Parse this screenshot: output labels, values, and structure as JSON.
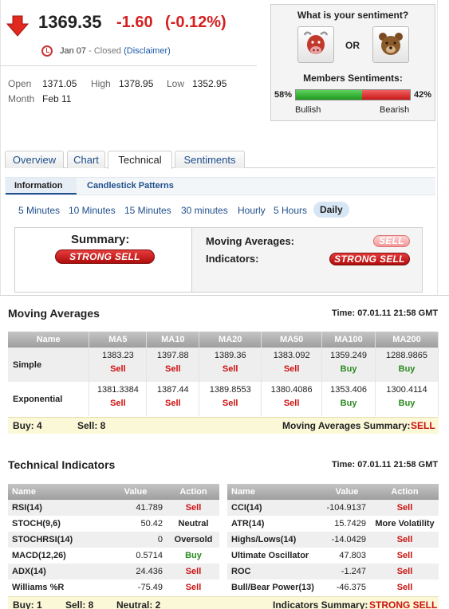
{
  "quote": {
    "price": "1369.35",
    "change": "-1.60",
    "change_pct": "(-0.12%)",
    "date": "Jan 07",
    "status": "- Closed",
    "disclaimer": "(Disclaimer)",
    "open_label": "Open",
    "open": "1371.05",
    "high_label": "High",
    "high": "1378.95",
    "low_label": "Low",
    "low": "1352.95",
    "month_label": "Month",
    "month": "Feb 11",
    "down_color": "#d42020"
  },
  "sentiment": {
    "question": "What is your sentiment?",
    "or": "OR",
    "bull_icon": "bull-icon",
    "bear_icon": "bear-icon",
    "title": "Members Sentiments:",
    "bullish_pct": "58%",
    "bearish_pct": "42%",
    "bullish_fraction": 0.58,
    "bullish_label": "Bullish",
    "bearish_label": "Bearish"
  },
  "tabs": [
    "Overview",
    "Chart",
    "Technical",
    "Sentiments"
  ],
  "subtabs": [
    "Information",
    "Candlestick Patterns"
  ],
  "timeframes": [
    "5 Minutes",
    "10 Minutes",
    "15 Minutes",
    "30 minutes",
    "Hourly",
    "5 Hours",
    "Daily"
  ],
  "summary": {
    "title": "Summary:",
    "value": "STRONG SELL",
    "ma_label": "Moving Averages:",
    "ma_value": "SELL",
    "ind_label": "Indicators:",
    "ind_value": "STRONG SELL"
  },
  "moving_averages": {
    "title": "Moving Averages",
    "time": "Time: 07.01.11 21:58 GMT",
    "headers": [
      "Name",
      "MA5",
      "MA10",
      "MA20",
      "MA50",
      "MA100",
      "MA200"
    ],
    "rows": [
      {
        "name": "Simple",
        "values": [
          "1383.23",
          "1397.88",
          "1389.36",
          "1383.092",
          "1359.249",
          "1288.9865"
        ],
        "signals": [
          "Sell",
          "Sell",
          "Sell",
          "Sell",
          "Buy",
          "Buy"
        ]
      },
      {
        "name": "Exponential",
        "values": [
          "1381.3384",
          "1387.44",
          "1389.8553",
          "1380.4086",
          "1353.406",
          "1300.4114"
        ],
        "signals": [
          "Sell",
          "Sell",
          "Sell",
          "Sell",
          "Buy",
          "Buy"
        ]
      }
    ],
    "buy": "Buy: 4",
    "sell": "Sell: 8",
    "summary_label": "Moving Averages Summary:",
    "summary_value": "SELL"
  },
  "technical": {
    "title": "Technical Indicators",
    "time": "Time: 07.01.11 21:58 GMT",
    "headers": [
      "Name",
      "Value",
      "Action"
    ],
    "left": [
      {
        "name": "RSI(14)",
        "value": "41.789",
        "action": "Sell"
      },
      {
        "name": "STOCH(9,6)",
        "value": "50.42",
        "action": "Neutral"
      },
      {
        "name": "STOCHRSI(14)",
        "value": "0",
        "action": "Oversold"
      },
      {
        "name": "MACD(12,26)",
        "value": "0.5714",
        "action": "Buy"
      },
      {
        "name": "ADX(14)",
        "value": "24.436",
        "action": "Sell"
      },
      {
        "name": "Williams %R",
        "value": "-75.49",
        "action": "Sell"
      }
    ],
    "right": [
      {
        "name": "CCI(14)",
        "value": "-104.9137",
        "action": "Sell"
      },
      {
        "name": "ATR(14)",
        "value": "15.7429",
        "action": "More Volatility"
      },
      {
        "name": "Highs/Lows(14)",
        "value": "-14.0429",
        "action": "Sell"
      },
      {
        "name": "Ultimate Oscillator",
        "value": "47.803",
        "action": "Sell"
      },
      {
        "name": "ROC",
        "value": "-1.247",
        "action": "Sell"
      },
      {
        "name": "Bull/Bear Power(13)",
        "value": "-46.375",
        "action": "Sell"
      }
    ],
    "buy": "Buy: 1",
    "sell": "Sell: 8",
    "neutral": "Neutral: 2",
    "summary_label": "Indicators Summary:",
    "summary_value": "STRONG SELL"
  }
}
